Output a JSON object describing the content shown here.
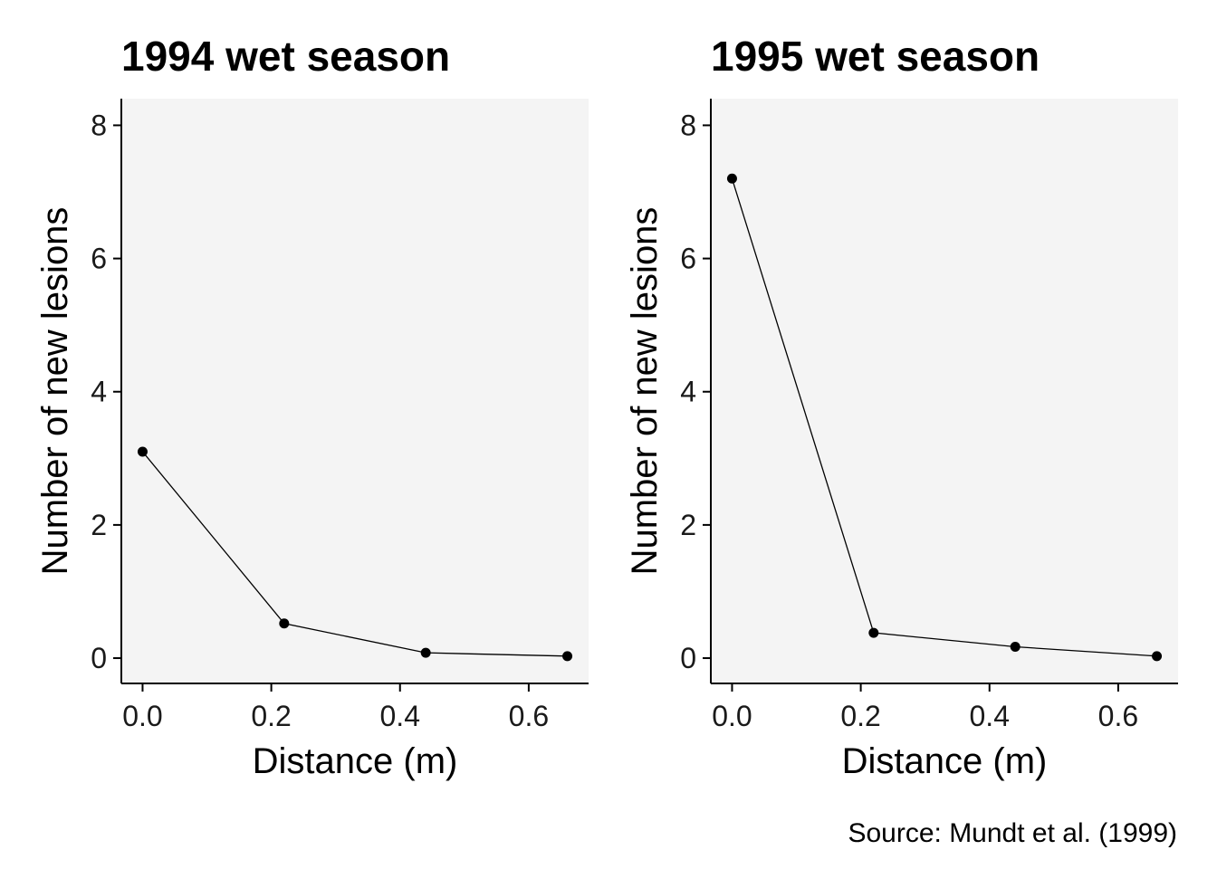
{
  "chart_data": [
    {
      "type": "line",
      "title": "1994 wet season",
      "xlabel": "Distance (m)",
      "ylabel": "Number of new lesions",
      "xlim": [
        -0.033,
        0.693
      ],
      "ylim": [
        -0.38,
        8.4
      ],
      "xticks": [
        "0.0",
        "0.2",
        "0.4",
        "0.6"
      ],
      "xtick_values": [
        0.0,
        0.2,
        0.4,
        0.6
      ],
      "yticks": [
        "0",
        "2",
        "4",
        "6",
        "8"
      ],
      "ytick_values": [
        0,
        2,
        4,
        6,
        8
      ],
      "grid": false,
      "background": "#f4f4f4",
      "series": [
        {
          "x": [
            0.0,
            0.22,
            0.44,
            0.66
          ],
          "y": [
            3.1,
            0.52,
            0.08,
            0.03
          ]
        }
      ]
    },
    {
      "type": "line",
      "title": "1995 wet season",
      "xlabel": "Distance (m)",
      "ylabel": "Number of new lesions",
      "xlim": [
        -0.033,
        0.693
      ],
      "ylim": [
        -0.38,
        8.4
      ],
      "xticks": [
        "0.0",
        "0.2",
        "0.4",
        "0.6"
      ],
      "xtick_values": [
        0.0,
        0.2,
        0.4,
        0.6
      ],
      "yticks": [
        "0",
        "2",
        "4",
        "6",
        "8"
      ],
      "ytick_values": [
        0,
        2,
        4,
        6,
        8
      ],
      "grid": false,
      "background": "#f4f4f4",
      "series": [
        {
          "x": [
            0.0,
            0.22,
            0.44,
            0.66
          ],
          "y": [
            7.2,
            0.38,
            0.17,
            0.03
          ]
        }
      ]
    }
  ],
  "caption": "Source: Mundt et al. (1999)",
  "colors": {
    "panel_bg": "#f4f4f4",
    "line": "#000000",
    "point": "#000000",
    "axis": "#000000"
  }
}
